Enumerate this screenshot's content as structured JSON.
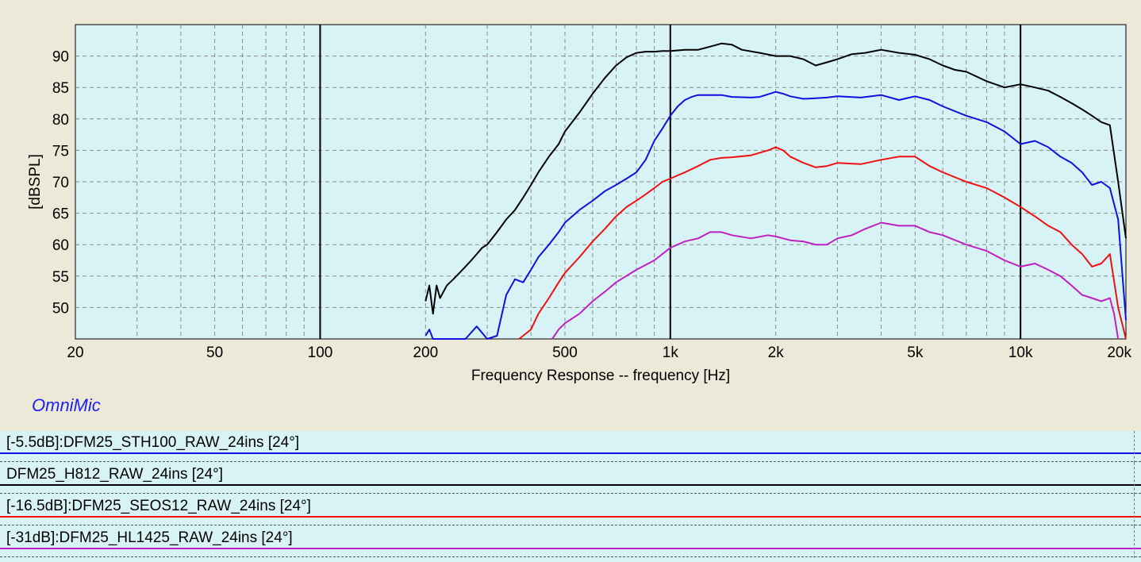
{
  "brand": "OmniMic",
  "chart_data": {
    "type": "line",
    "xlabel": "Frequency Response -- frequency [Hz]",
    "ylabel": "[dBSPL]",
    "xscale": "log",
    "xlim": [
      20,
      20000
    ],
    "ylim": [
      45,
      95
    ],
    "grid": true,
    "y_ticks": [
      50,
      55,
      60,
      65,
      70,
      75,
      80,
      85,
      90
    ],
    "x_ticks": [
      {
        "value": 20,
        "label": "20"
      },
      {
        "value": 50,
        "label": "50"
      },
      {
        "value": 100,
        "label": "100"
      },
      {
        "value": 200,
        "label": "200"
      },
      {
        "value": 500,
        "label": "500"
      },
      {
        "value": 1000,
        "label": "1k"
      },
      {
        "value": 2000,
        "label": "2k"
      },
      {
        "value": 5000,
        "label": "5k"
      },
      {
        "value": 10000,
        "label": "10k"
      },
      {
        "value": 20000,
        "label": "20k"
      }
    ],
    "colors": {
      "plot_background": "#d8f3f6",
      "grid": "#8a8a8a",
      "decade_lines": "#000000"
    },
    "series": [
      {
        "name": "[-5.5dB]:DFM25_STH100_RAW_24ins [24°]",
        "color": "#1010e0",
        "x": [
          200,
          205,
          210,
          220,
          240,
          260,
          280,
          300,
          320,
          340,
          360,
          380,
          400,
          420,
          450,
          480,
          500,
          550,
          600,
          650,
          700,
          750,
          800,
          850,
          900,
          950,
          1000,
          1050,
          1100,
          1150,
          1200,
          1300,
          1400,
          1500,
          1700,
          1800,
          2000,
          2100,
          2200,
          2400,
          2600,
          2800,
          3000,
          3500,
          4000,
          4500,
          5000,
          5500,
          6000,
          7000,
          8000,
          9000,
          10000,
          11000,
          12000,
          13000,
          14000,
          15000,
          16000,
          17000,
          18000,
          19000,
          20000
        ],
        "values": [
          45.5,
          46.5,
          44.5,
          45.0,
          44.8,
          45.0,
          47.0,
          45.0,
          45.5,
          52.0,
          54.5,
          54.0,
          56.0,
          58.0,
          60.0,
          62.0,
          63.5,
          65.5,
          67.0,
          68.5,
          69.5,
          70.5,
          71.5,
          73.5,
          76.5,
          78.5,
          80.5,
          82.0,
          83.0,
          83.5,
          83.8,
          83.8,
          83.8,
          83.5,
          83.4,
          83.5,
          84.3,
          84.0,
          83.6,
          83.2,
          83.3,
          83.4,
          83.6,
          83.4,
          83.8,
          83.0,
          83.6,
          83.0,
          82.0,
          80.5,
          79.5,
          78.0,
          76.0,
          76.5,
          75.5,
          74.0,
          73.0,
          71.5,
          69.5,
          70.0,
          69.0,
          64.0,
          48.0
        ]
      },
      {
        "name": "DFM25_H812_RAW_24ins [24°]",
        "color": "#000000",
        "x": [
          200,
          205,
          210,
          215,
          220,
          230,
          240,
          250,
          260,
          270,
          280,
          290,
          300,
          320,
          340,
          360,
          380,
          400,
          420,
          450,
          480,
          500,
          550,
          600,
          650,
          700,
          750,
          800,
          850,
          900,
          950,
          1000,
          1100,
          1200,
          1300,
          1400,
          1500,
          1600,
          1800,
          2000,
          2200,
          2400,
          2600,
          2800,
          3000,
          3300,
          3600,
          4000,
          4500,
          5000,
          5500,
          6000,
          6500,
          7000,
          8000,
          9000,
          10000,
          11000,
          12000,
          13000,
          14000,
          15000,
          16000,
          17000,
          18000,
          19000,
          20000
        ],
        "values": [
          51.0,
          53.5,
          49.0,
          53.5,
          51.5,
          53.5,
          54.5,
          55.5,
          56.5,
          57.5,
          58.5,
          59.5,
          60.0,
          62.0,
          64.0,
          65.5,
          67.5,
          69.5,
          71.5,
          74.0,
          76.0,
          78.0,
          81.0,
          84.0,
          86.5,
          88.5,
          89.8,
          90.5,
          90.7,
          90.7,
          90.8,
          90.8,
          91.0,
          91.0,
          91.5,
          92.0,
          91.8,
          91.0,
          90.5,
          90.0,
          90.0,
          89.5,
          88.5,
          89.0,
          89.5,
          90.3,
          90.5,
          91.0,
          90.5,
          90.2,
          89.5,
          88.5,
          87.8,
          87.5,
          86.0,
          85.0,
          85.5,
          85.0,
          84.5,
          83.5,
          82.5,
          81.5,
          80.5,
          79.5,
          79.0,
          70.0,
          61.0
        ]
      },
      {
        "name": "[-16.5dB]:DFM25_SEOS12_RAW_24ins [24°]",
        "color": "#f01010",
        "x": [
          370,
          400,
          420,
          450,
          480,
          500,
          550,
          600,
          650,
          700,
          750,
          800,
          850,
          900,
          950,
          1000,
          1100,
          1200,
          1300,
          1400,
          1500,
          1700,
          1900,
          2000,
          2100,
          2200,
          2400,
          2600,
          2800,
          3000,
          3500,
          4000,
          4500,
          5000,
          5500,
          6000,
          7000,
          8000,
          9000,
          10000,
          11000,
          12000,
          13000,
          14000,
          15000,
          16000,
          17000,
          18000,
          19000,
          20000
        ],
        "values": [
          45.0,
          46.5,
          49.0,
          51.5,
          54.0,
          55.5,
          58.0,
          60.5,
          62.5,
          64.5,
          66.0,
          67.0,
          68.0,
          69.0,
          70.0,
          70.5,
          71.5,
          72.5,
          73.5,
          73.8,
          73.9,
          74.2,
          75.0,
          75.5,
          75.0,
          74.0,
          73.0,
          72.3,
          72.5,
          73.0,
          72.8,
          73.5,
          74.0,
          74.0,
          72.5,
          71.5,
          70.0,
          69.0,
          67.5,
          66.0,
          64.5,
          63.0,
          62.0,
          60.0,
          58.5,
          56.5,
          57.0,
          58.5,
          50.0,
          45.0
        ]
      },
      {
        "name": "[-31dB]:DFM25_HL1425_RAW_24ins [24°]",
        "color": "#c020c0",
        "x": [
          460,
          480,
          500,
          550,
          600,
          650,
          700,
          800,
          900,
          1000,
          1100,
          1200,
          1300,
          1400,
          1500,
          1700,
          1900,
          2000,
          2200,
          2400,
          2600,
          2800,
          3000,
          3300,
          3600,
          4000,
          4500,
          5000,
          5500,
          6000,
          7000,
          8000,
          9000,
          10000,
          11000,
          12000,
          13000,
          14000,
          15000,
          16000,
          17000,
          18000,
          18500,
          19000
        ],
        "values": [
          45.0,
          46.5,
          47.5,
          49.0,
          51.0,
          52.5,
          54.0,
          56.0,
          57.5,
          59.5,
          60.5,
          61.0,
          62.0,
          62.0,
          61.5,
          61.0,
          61.5,
          61.3,
          60.7,
          60.5,
          60.0,
          60.0,
          61.0,
          61.5,
          62.5,
          63.5,
          63.0,
          63.0,
          62.0,
          61.5,
          60.0,
          59.0,
          57.5,
          56.5,
          57.0,
          56.0,
          55.0,
          53.5,
          52.0,
          51.5,
          51.0,
          51.5,
          49.0,
          45.0
        ]
      }
    ]
  }
}
